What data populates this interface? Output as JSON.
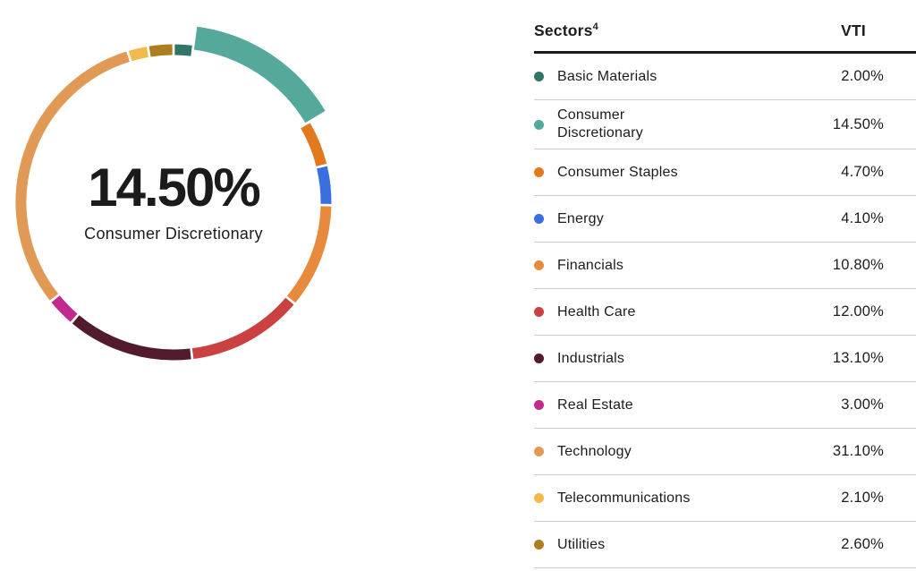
{
  "chart_data": {
    "type": "donut",
    "title": "",
    "legend_position": "right-table",
    "start_angle_deg": 0,
    "direction": "clockwise",
    "center": {
      "value": "14.50%",
      "label": "Consumer Discretionary"
    },
    "highlighted_category": "Consumer Discretionary",
    "categories": [
      "Basic Materials",
      "Consumer Discretionary",
      "Consumer Staples",
      "Energy",
      "Financials",
      "Health Care",
      "Industrials",
      "Real Estate",
      "Technology",
      "Telecommunications",
      "Utilities"
    ],
    "values": [
      2.0,
      14.5,
      4.7,
      4.1,
      10.8,
      12.0,
      13.1,
      3.0,
      31.1,
      2.1,
      2.6
    ],
    "display_values": [
      "2.00%",
      "14.50%",
      "4.70%",
      "4.10%",
      "10.80%",
      "12.00%",
      "13.10%",
      "3.00%",
      "31.10%",
      "2.10%",
      "2.60%"
    ],
    "colors": [
      "#2f7667",
      "#54a99b",
      "#e1791f",
      "#3a70dd",
      "#e88a3e",
      "#c94140",
      "#521a2d",
      "#c12b8d",
      "#e09a55",
      "#f2ba4a",
      "#ad7e1f"
    ]
  },
  "table": {
    "header": {
      "sectors_label": "Sectors",
      "sectors_superscript": "4",
      "fund_label": "VTI"
    }
  },
  "style": {
    "separator_color": "#cbcbcb",
    "header_rule_color": "#191919",
    "text_color": "#1c1c1c",
    "background": "#ffffff"
  }
}
